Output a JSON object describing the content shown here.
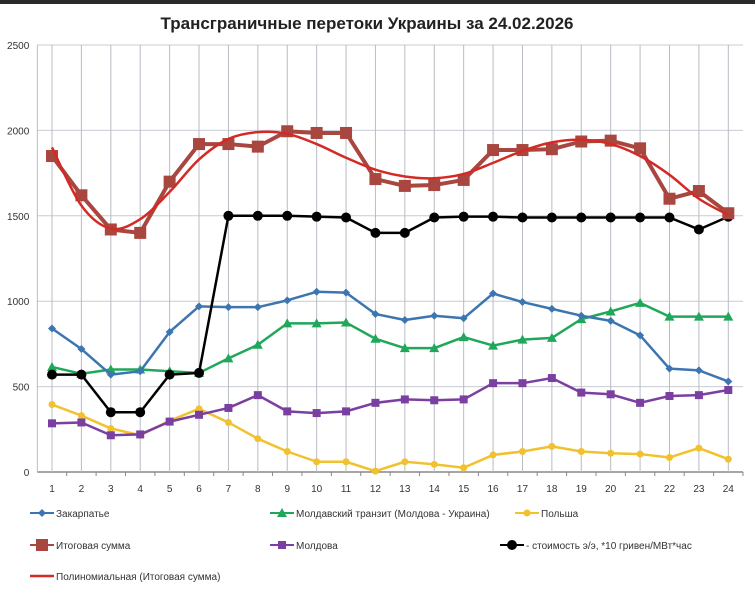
{
  "chart_data": {
    "type": "line",
    "title": "Трансграничные перетоки Украины за 24.02.2026",
    "xlabel": "",
    "ylabel": "",
    "categories": [
      "1",
      "2",
      "3",
      "4",
      "5",
      "6",
      "7",
      "8",
      "9",
      "10",
      "11",
      "12",
      "13",
      "14",
      "15",
      "16",
      "17",
      "18",
      "19",
      "20",
      "21",
      "22",
      "23",
      "24"
    ],
    "ylim": [
      0,
      2500
    ],
    "yticks": [
      "0",
      "500",
      "1000",
      "1500",
      "2000",
      "2500"
    ],
    "grid": true,
    "legend_position": "bottom",
    "series": [
      {
        "name": "Закарпатье",
        "color": "#3d75b0",
        "marker": "diamond",
        "values": [
          840,
          720,
          570,
          590,
          820,
          970,
          965,
          965,
          1005,
          1055,
          1050,
          925,
          890,
          915,
          900,
          1045,
          995,
          955,
          915,
          885,
          800,
          605,
          595,
          530
        ]
      },
      {
        "name": "Молдавский транзит (Молдова - Украина)",
        "color": "#1fa85a",
        "marker": "triangle",
        "values": [
          615,
          575,
          600,
          600,
          590,
          580,
          665,
          745,
          870,
          870,
          875,
          780,
          725,
          725,
          790,
          740,
          775,
          785,
          895,
          940,
          990,
          910,
          910,
          910
        ]
      },
      {
        "name": "Польша",
        "color": "#f2c12e",
        "marker": "circle",
        "values": [
          395,
          330,
          255,
          215,
          300,
          370,
          290,
          195,
          120,
          60,
          60,
          5,
          60,
          45,
          25,
          100,
          120,
          150,
          120,
          110,
          105,
          85,
          140,
          75
        ]
      },
      {
        "name": "Итоговая сумма",
        "color": "#a8463f",
        "marker": "square",
        "values": [
          1850,
          1620,
          1420,
          1400,
          1700,
          1920,
          1920,
          1905,
          1995,
          1985,
          1985,
          1715,
          1675,
          1680,
          1710,
          1885,
          1885,
          1890,
          1935,
          1940,
          1895,
          1600,
          1645,
          1515
        ]
      },
      {
        "name": "Молдова",
        "color": "#7a3fa0",
        "marker": "square",
        "values": [
          285,
          290,
          215,
          220,
          295,
          335,
          375,
          450,
          355,
          345,
          355,
          405,
          425,
          420,
          425,
          520,
          520,
          550,
          465,
          455,
          405,
          445,
          450,
          480
        ]
      },
      {
        "name": "- стоимость э/э, *10 гривен/МВт*час",
        "color": "#000000",
        "marker": "circle",
        "values": [
          570,
          570,
          350,
          350,
          570,
          580,
          1500,
          1500,
          1500,
          1495,
          1490,
          1400,
          1400,
          1490,
          1495,
          1495,
          1490,
          1490,
          1490,
          1490,
          1490,
          1490,
          1420,
          1495
        ]
      },
      {
        "name": "Полиномиальная (Итоговая сумма)",
        "color": "#d42a26",
        "marker": "none",
        "trendline": true,
        "values": [
          1900,
          1560,
          1425,
          1480,
          1640,
          1830,
          1950,
          1990,
          1980,
          1920,
          1840,
          1770,
          1730,
          1720,
          1745,
          1810,
          1880,
          1930,
          1945,
          1920,
          1850,
          1740,
          1600,
          1505
        ]
      }
    ]
  }
}
